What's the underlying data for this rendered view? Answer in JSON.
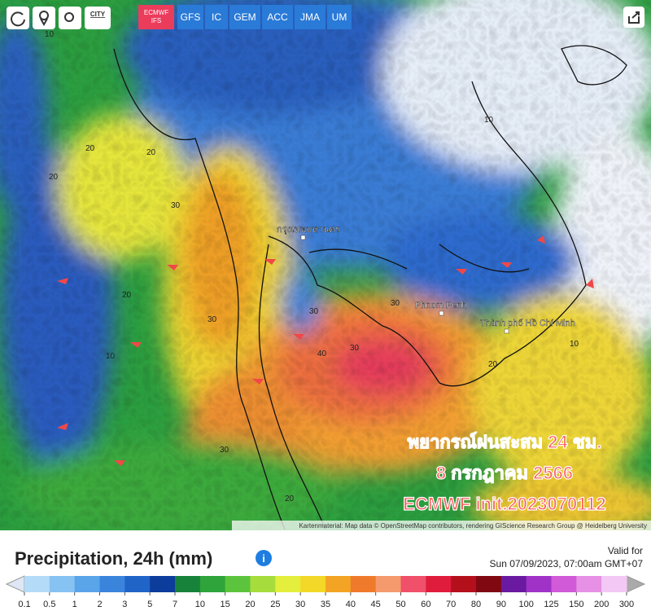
{
  "toolbar": {
    "city": "CITY",
    "models": [
      "ECMWF IFS",
      "GFS",
      "IC",
      "GEM",
      "ACC",
      "JMA",
      "UM"
    ],
    "active_model": 0
  },
  "map": {
    "places": [
      "กรุงเทพมหานคร",
      "Phnom Penh",
      "Thành phố Hồ Chí Minh"
    ],
    "contour_labels": [
      "10",
      "20",
      "20",
      "30",
      "20",
      "30",
      "10",
      "30",
      "30",
      "40",
      "30",
      "20",
      "10",
      "30",
      "20",
      "10",
      "20"
    ],
    "overlay": [
      "พยากรณ์ฝนสะสม 24 ชม.",
      "8 กรกฎาคม 2566",
      "ECMWF init.2023070112"
    ],
    "attribution": "Kartenmaterial: Map data © OpenStreetMap contributors, rendering GIScience Research Group @ Heidelberg University"
  },
  "legend": {
    "title": "Precipitation, 24h (mm)",
    "valid_for": "Valid for",
    "valid_time": "Sun 07/09/2023, 07:00am GMT+07",
    "labels": [
      "0.1",
      "0.5",
      "1",
      "2",
      "3",
      "5",
      "7",
      "10",
      "15",
      "20",
      "25",
      "30",
      "35",
      "40",
      "45",
      "50",
      "60",
      "70",
      "80",
      "90",
      "100",
      "125",
      "150",
      "200",
      "300"
    ],
    "colors": [
      "#b4dcf8",
      "#86c2f2",
      "#5aa4ea",
      "#3a84dc",
      "#2064c8",
      "#0c3c9c",
      "#16823a",
      "#2ea43a",
      "#5cc43c",
      "#a6dc3c",
      "#e4ee3c",
      "#f4d828",
      "#f4a424",
      "#f07a2c",
      "#f49a6c",
      "#f0506a",
      "#e01c3c",
      "#b4101c",
      "#800810",
      "#6a1aa0",
      "#a032c8",
      "#d05ad8",
      "#e690e6",
      "#f4c8f4"
    ]
  }
}
